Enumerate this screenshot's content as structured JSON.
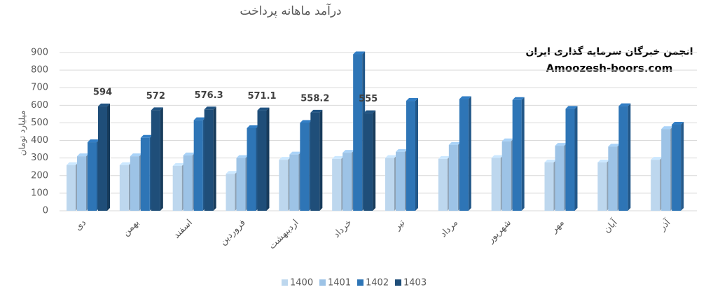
{
  "chart_data": {
    "type": "bar3d",
    "title": "درآمد ماهانه پرداخت",
    "y_label": "میلیارد تومان",
    "annotations": [
      "انجمن خبرگان سرمایه گذاری ایران",
      "Amoozesh-boors.com"
    ],
    "categories": [
      "دی",
      "بهمن",
      "اسفند",
      "فروردین",
      "اردیبهشت",
      "خرداد",
      "تیر",
      "مرداد",
      "شهریور",
      "مهر",
      "آبان",
      "آذر"
    ],
    "series": [
      {
        "name": "1400",
        "color": "#bdd7ee",
        "values": [
          260,
          260,
          255,
          210,
          290,
          295,
          300,
          295,
          300,
          275,
          275,
          290
        ]
      },
      {
        "name": "1401",
        "color": "#9dc3e6",
        "values": [
          310,
          310,
          315,
          300,
          320,
          330,
          335,
          375,
          395,
          370,
          365,
          465
        ]
      },
      {
        "name": "1402",
        "color": "#2e75b6",
        "values": [
          390,
          415,
          515,
          470,
          500,
          890,
          625,
          635,
          630,
          580,
          595,
          490
        ]
      },
      {
        "name": "1403",
        "color": "#1f4e79",
        "values": [
          594,
          572,
          576.3,
          571.1,
          558.2,
          555,
          null,
          null,
          null,
          null,
          null,
          null
        ],
        "show_labels": true
      }
    ],
    "ylim": [
      0,
      900
    ],
    "yticks": [
      0,
      100,
      200,
      300,
      400,
      500,
      600,
      700,
      800,
      900
    ],
    "grid": true,
    "legend": "bottom"
  }
}
